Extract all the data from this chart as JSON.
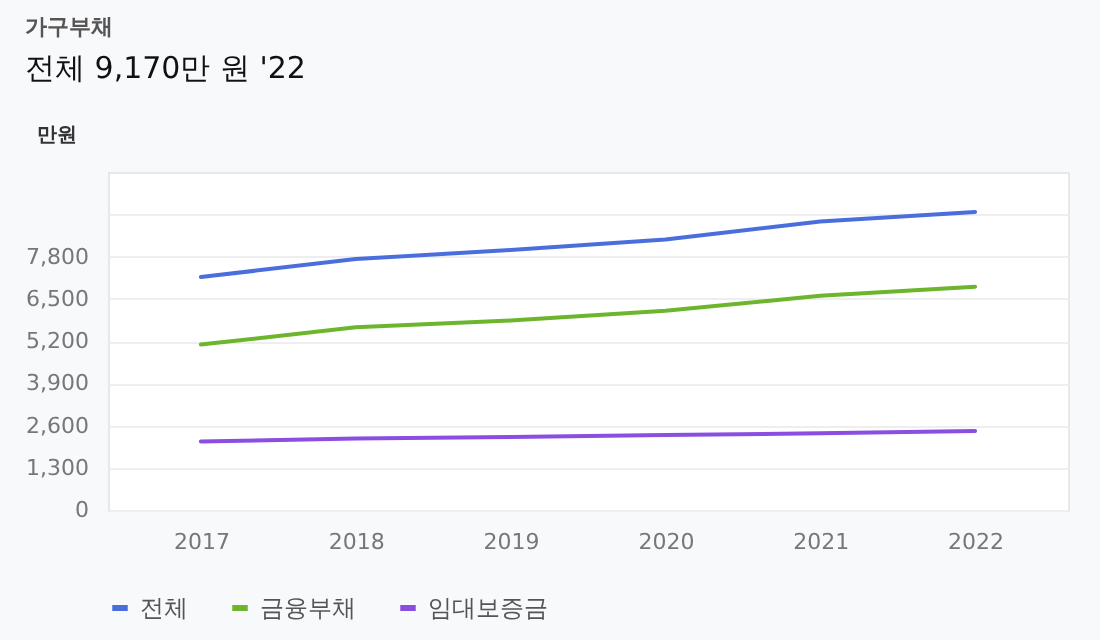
{
  "chart_data": {
    "type": "line",
    "title": "가구부채",
    "subtitle": "전체 9,170만 원 '22",
    "ylabel": "만원",
    "categories": [
      "2017",
      "2018",
      "2019",
      "2020",
      "2021",
      "2022"
    ],
    "series": [
      {
        "name": "전체",
        "color": "#4a6fdc",
        "values": [
          7170,
          7720,
          8000,
          8320,
          8880,
          9170
        ]
      },
      {
        "name": "금융부채",
        "color": "#6cb52d",
        "values": [
          5090,
          5620,
          5830,
          6130,
          6590,
          6870
        ]
      },
      {
        "name": "임대보증금",
        "color": "#8a4fe0",
        "values": [
          2110,
          2200,
          2250,
          2310,
          2360,
          2430
        ]
      }
    ],
    "ylim": [
      0,
      10400
    ],
    "yticks": [
      0,
      {
        "value": 1300,
        "label": "1,300"
      },
      {
        "value": 2600,
        "label": "2,600"
      },
      {
        "value": 3900,
        "label": "3,900"
      },
      {
        "value": 5200,
        "label": "5,200"
      },
      {
        "value": 6500,
        "label": "6,500"
      },
      {
        "value": 7800,
        "label": "7,800"
      },
      {
        "value": 9100,
        "label": null
      }
    ],
    "grid": "y",
    "legend": "bottom left",
    "marker": "none",
    "line_style": "solid"
  }
}
